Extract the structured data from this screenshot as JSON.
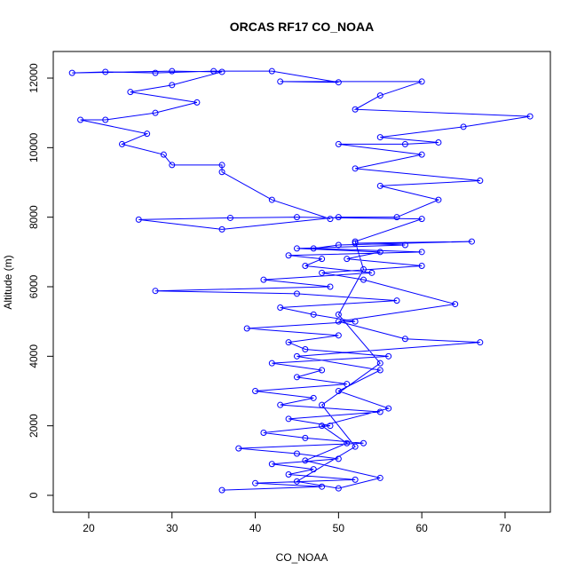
{
  "chart_data": {
    "type": "line",
    "title": "ORCAS RF17 CO_NOAA",
    "x_label": "CO_NOAA",
    "y_label": "Altitude (m)",
    "color": "#0000ff",
    "marker": "circle",
    "xlim": [
      15.74,
      75.44
    ],
    "ylim": [
      -485,
      12766
    ],
    "xticks": [
      20,
      30,
      40,
      50,
      60,
      70
    ],
    "yticks": [
      0,
      2000,
      4000,
      6000,
      8000,
      10000,
      12000
    ],
    "x": [
      36,
      48,
      40,
      52,
      44,
      47,
      42,
      50,
      45,
      38,
      53,
      46,
      41,
      49,
      44,
      55,
      43,
      47,
      40,
      51,
      45,
      48,
      42,
      56,
      46,
      44,
      50,
      39,
      52,
      47,
      43,
      57,
      45,
      28,
      49,
      41,
      54,
      46,
      48,
      44,
      60,
      47,
      50,
      66,
      52,
      58,
      45,
      55,
      51,
      60,
      48,
      53,
      64,
      50,
      58,
      67,
      45,
      55,
      50,
      56,
      48,
      51,
      46,
      55,
      50,
      45,
      52,
      48,
      55,
      50,
      53,
      52,
      60,
      45,
      37,
      26,
      36,
      50,
      57,
      62,
      55,
      67,
      52,
      60,
      50,
      58,
      62,
      55,
      65,
      73,
      52,
      55,
      60,
      43,
      50,
      42,
      35,
      28,
      22,
      18,
      30,
      36,
      30,
      25,
      33,
      28,
      22,
      19,
      27,
      24,
      29,
      30,
      36,
      36,
      42,
      49
    ],
    "values": [
      150,
      250,
      350,
      450,
      600,
      750,
      900,
      1050,
      1200,
      1350,
      1500,
      1650,
      1800,
      2000,
      2200,
      2400,
      2600,
      2800,
      3000,
      3200,
      3400,
      3600,
      3800,
      4000,
      4200,
      4400,
      4600,
      4800,
      5000,
      5200,
      5400,
      5600,
      5800,
      5880,
      6000,
      6200,
      6400,
      6600,
      6800,
      6900,
      7000,
      7100,
      7200,
      7300,
      7250,
      7200,
      7100,
      7000,
      6800,
      6600,
      6400,
      6200,
      5500,
      5000,
      4500,
      4400,
      4000,
      3600,
      3000,
      2500,
      2000,
      1500,
      1000,
      500,
      200,
      400,
      1400,
      2600,
      3800,
      5200,
      6500,
      7300,
      7950,
      8000,
      7980,
      7930,
      7650,
      8000,
      8000,
      8500,
      8900,
      9050,
      9400,
      9800,
      10100,
      10100,
      10150,
      10300,
      10600,
      10900,
      11100,
      11500,
      11900,
      11900,
      11880,
      12200,
      12200,
      12150,
      12180,
      12150,
      12200,
      12180,
      11800,
      11600,
      11300,
      11000,
      10800,
      10800,
      10400,
      10100,
      9800,
      9500,
      9500,
      9300,
      8500,
      7950
    ]
  }
}
